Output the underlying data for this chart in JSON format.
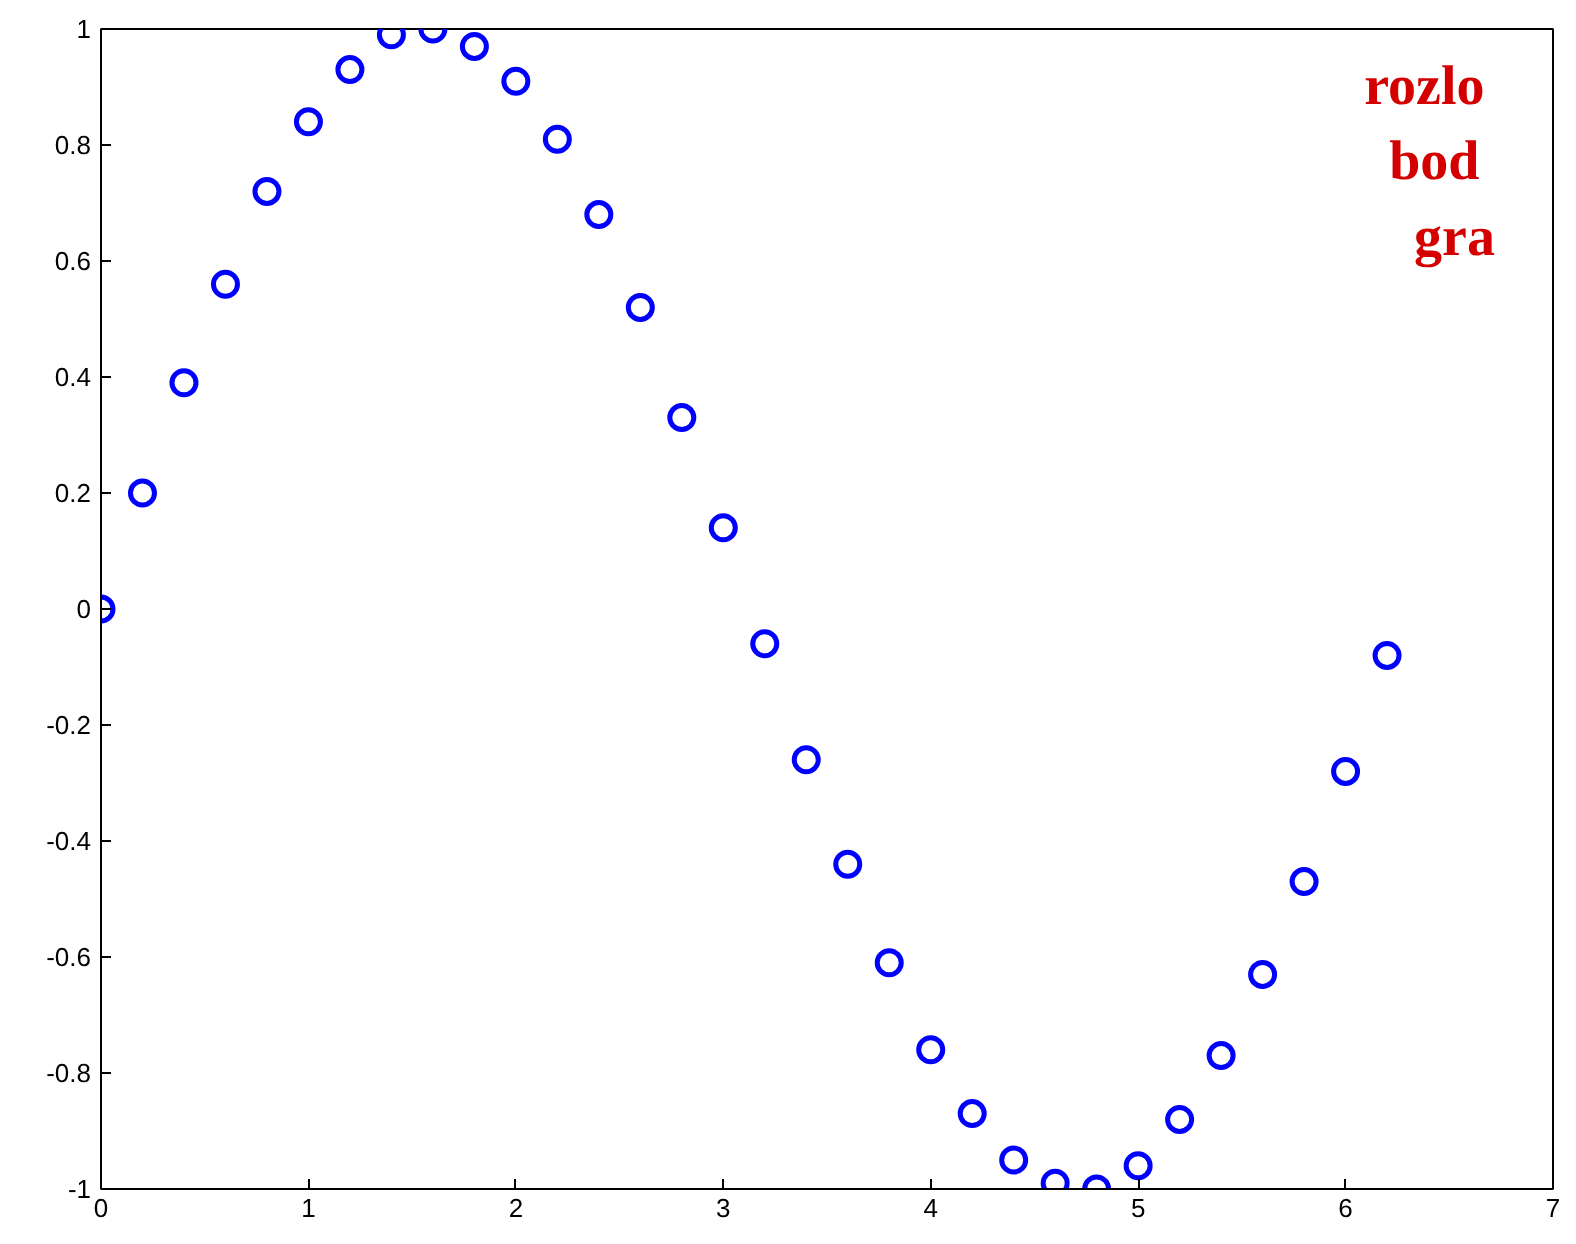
{
  "chart_data": {
    "type": "scatter",
    "marker": "circle",
    "grid": false,
    "x": [
      0,
      0.2,
      0.4,
      0.6,
      0.8,
      1,
      1.2,
      1.4,
      1.6,
      1.8,
      2,
      2.2,
      2.4,
      2.6,
      2.8,
      3,
      3.2,
      3.4,
      3.6,
      3.8,
      4,
      4.2,
      4.4,
      4.6,
      4.8,
      5,
      5.2,
      5.4,
      5.6,
      5.8,
      6,
      6.2
    ],
    "series": [
      {
        "color": "#0000ff",
        "values": [
          0,
          0.2,
          0.39,
          0.56,
          0.72,
          0.84,
          0.93,
          0.99,
          1.0,
          0.97,
          0.91,
          0.81,
          0.68,
          0.52,
          0.33,
          0.14,
          -0.06,
          -0.26,
          -0.44,
          -0.61,
          -0.76,
          -0.87,
          -0.95,
          -0.99,
          -1.0,
          -0.96,
          -0.88,
          -0.77,
          -0.63,
          -0.47,
          -0.28,
          -0.08
        ]
      }
    ],
    "xlim": [
      0,
      7
    ],
    "xticks": [
      0,
      1,
      2,
      3,
      4,
      5,
      6,
      7
    ],
    "ylim": [
      -1,
      1
    ],
    "yticks": [
      -1,
      -0.8,
      -0.6,
      -0.4,
      -0.2,
      0,
      0.2,
      0.4,
      0.6,
      0.8,
      1
    ],
    "annotations": [
      "rozlo",
      "bod",
      "gra"
    ]
  }
}
